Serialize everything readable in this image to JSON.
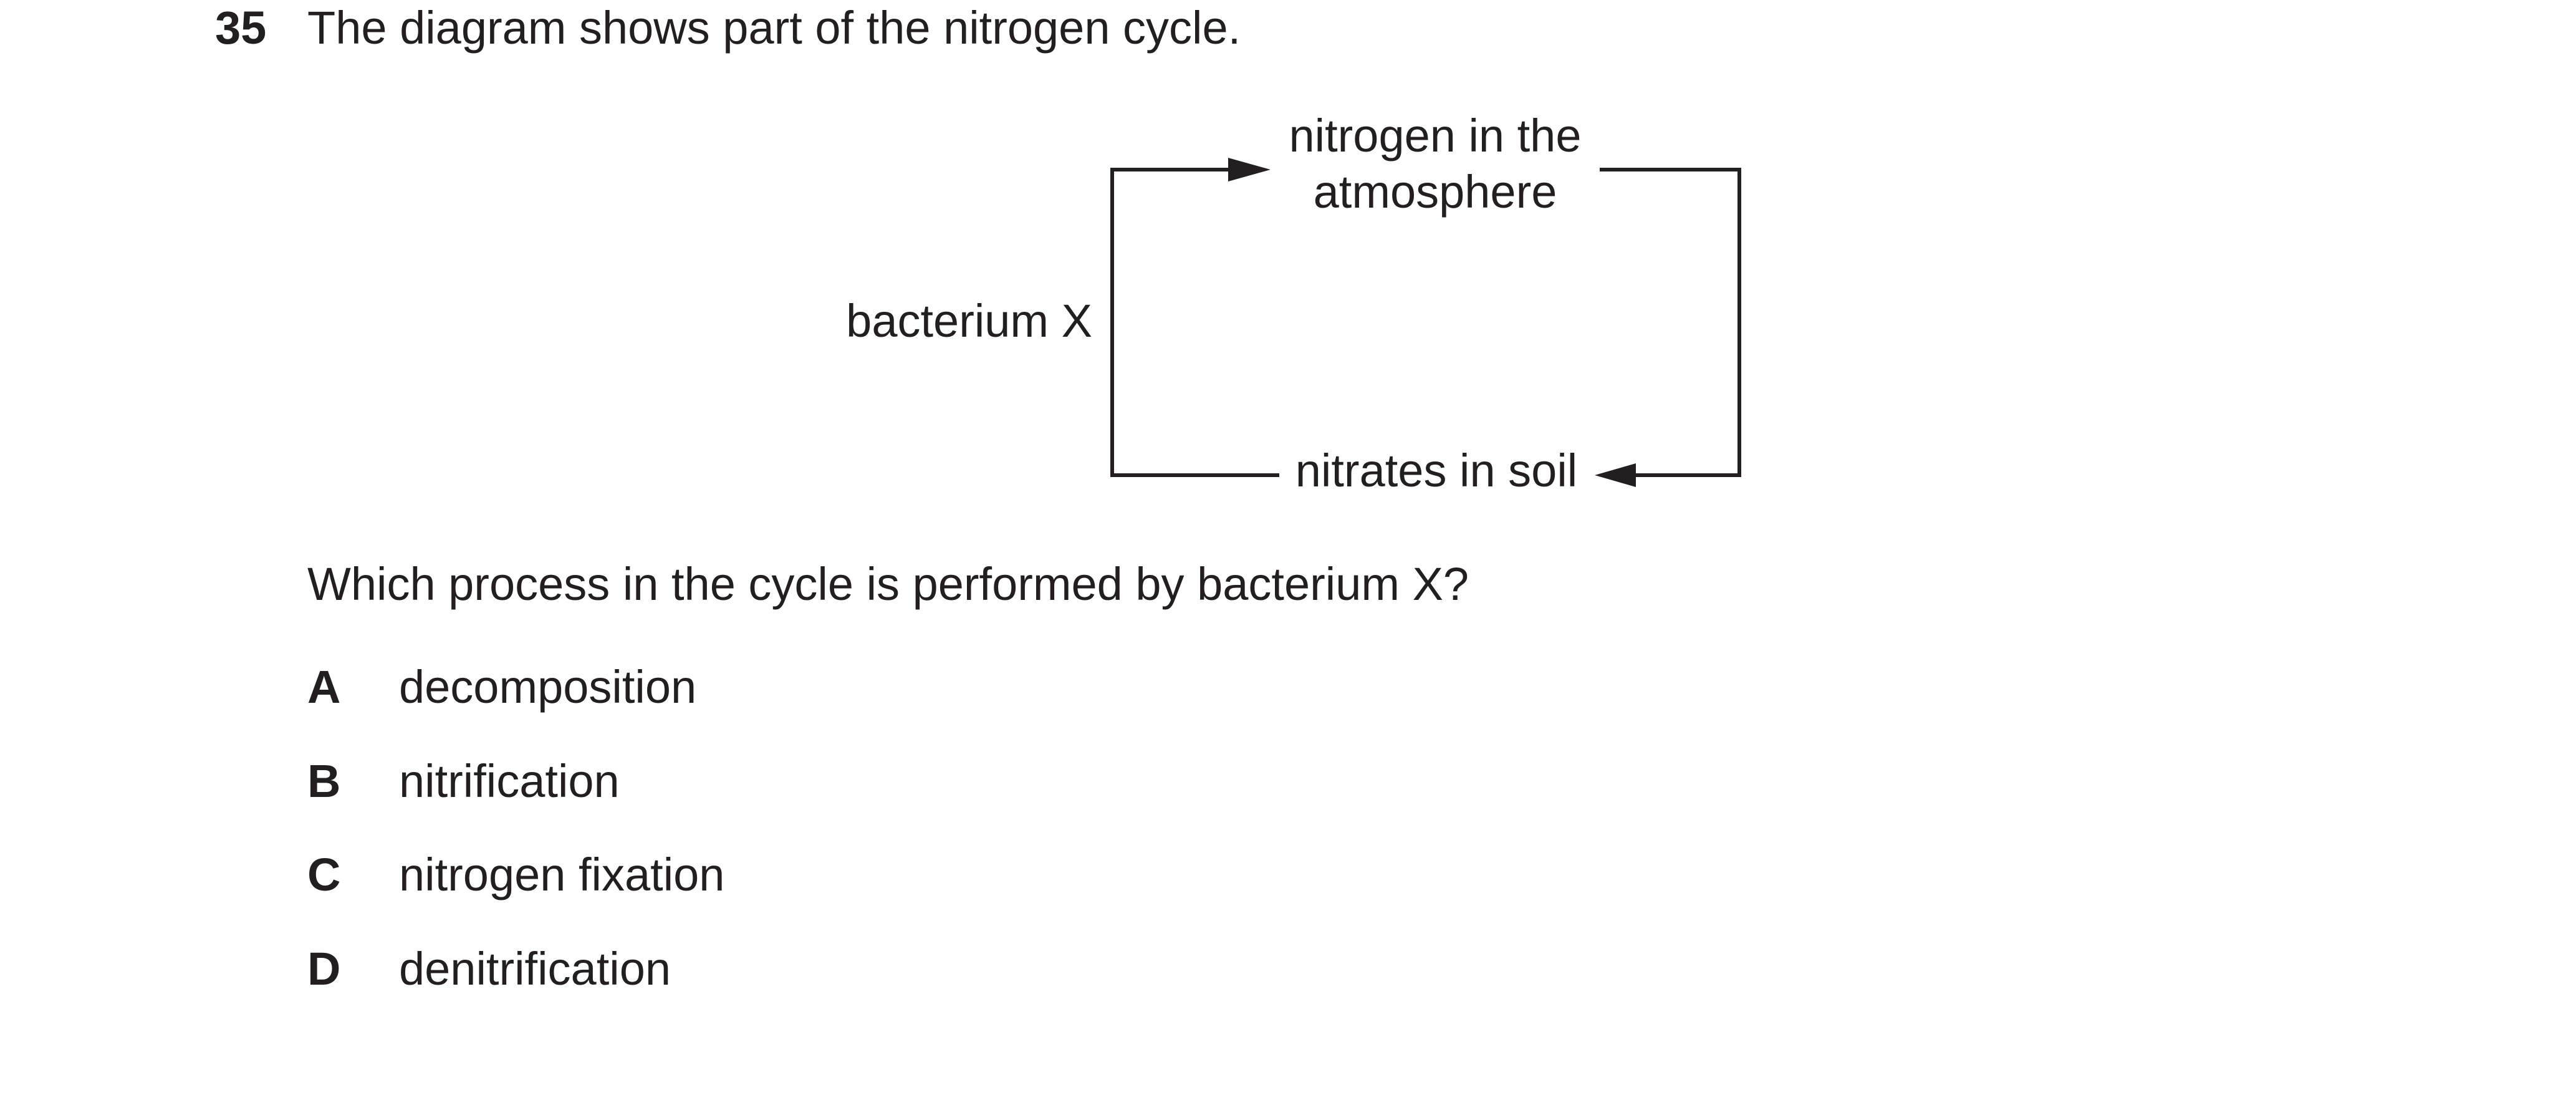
{
  "question": {
    "number": "35",
    "stem": "The diagram shows part of the nitrogen cycle.",
    "prompt": "Which process in the cycle is performed by bacterium X?"
  },
  "diagram": {
    "top_label_line1": "nitrogen in the",
    "top_label_line2": "atmosphere",
    "bottom_label": "nitrates in soil",
    "left_label": "bacterium X"
  },
  "options": [
    {
      "letter": "A",
      "text": "decomposition"
    },
    {
      "letter": "B",
      "text": "nitrification"
    },
    {
      "letter": "C",
      "text": "nitrogen fixation"
    },
    {
      "letter": "D",
      "text": "denitrification"
    }
  ]
}
